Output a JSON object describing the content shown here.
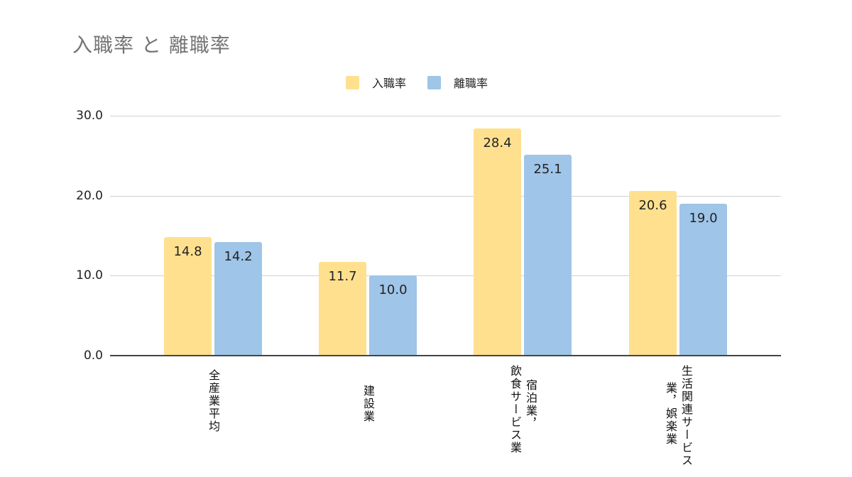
{
  "chart_data": {
    "type": "bar",
    "title": "入職率 と 離職率",
    "categories": [
      "全産業平均",
      "建設業",
      "宿泊業，飲食サービス業",
      "生活関連サービス業，娯楽業"
    ],
    "category_label_columns": [
      [
        "全産業平均"
      ],
      [
        "建設業"
      ],
      [
        "宿泊業，",
        "飲食サービス業"
      ],
      [
        "生活関連サービス",
        "業，娯楽業"
      ]
    ],
    "series": [
      {
        "name": "入職率",
        "color": "#FFE08F",
        "values": [
          14.8,
          11.7,
          28.4,
          20.6
        ],
        "labels": [
          "14.8",
          "11.7",
          "28.4",
          "20.6"
        ]
      },
      {
        "name": "離職率",
        "color": "#9FC5E8",
        "values": [
          14.2,
          10.0,
          25.1,
          19.0
        ],
        "labels": [
          "14.2",
          "10.0",
          "25.1",
          "19.0"
        ]
      }
    ],
    "xlabel": "",
    "ylabel": "",
    "ylim": [
      0,
      30
    ],
    "yticks": [
      "0.0",
      "10.0",
      "20.0",
      "30.0"
    ],
    "grid": true,
    "legend_position": "top"
  }
}
